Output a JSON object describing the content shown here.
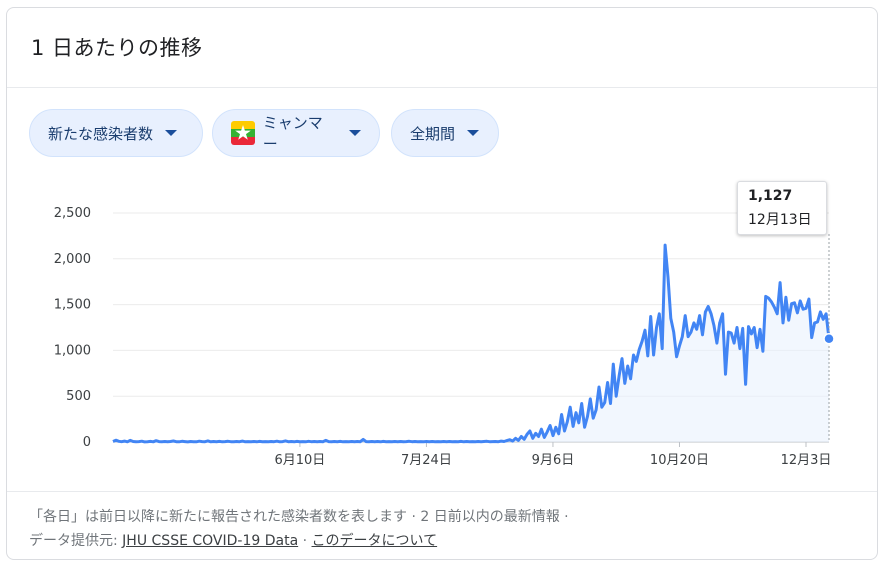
{
  "header": {
    "title": "1 日あたりの推移"
  },
  "filters": {
    "metric": "新たな感染者数",
    "country": "ミャンマー",
    "period": "全期間"
  },
  "tooltip": {
    "value": "1,127",
    "date": "12月13日"
  },
  "footer": {
    "line1": "「各日」は前日以降に新たに報告された感染者数を表します · 2 日前以内の最新情報 ·",
    "source_prefix": "データ提供元: ",
    "source_link": "JHU CSSE COVID-19 Data",
    "separator": " · ",
    "about_link": "このデータについて"
  },
  "colors": {
    "line": "#4285f4",
    "area": "#e8f0fe",
    "pill_bg": "#e8f0fe",
    "flag_top": "#fecb00",
    "flag_mid": "#34b233",
    "flag_bottom": "#ea2839"
  },
  "chart_data": {
    "type": "area",
    "title": "",
    "xlabel": "",
    "ylabel": "",
    "ylim": [
      0,
      2500
    ],
    "yticks": [
      "0",
      "500",
      "1,000",
      "1,500",
      "2,000",
      "2,500"
    ],
    "xticks": [
      {
        "label": "6月10日",
        "day": 88
      },
      {
        "label": "7月24日",
        "day": 132
      },
      {
        "label": "9月6日",
        "day": 176
      },
      {
        "label": "10月20日",
        "day": 220
      },
      {
        "label": "12月3日",
        "day": 264
      }
    ],
    "grid": true,
    "series": [
      {
        "name": "",
        "points": [
          [
            23,
            5
          ],
          [
            24,
            20
          ],
          [
            25,
            8
          ],
          [
            26,
            3
          ],
          [
            27,
            10
          ],
          [
            28,
            2
          ],
          [
            29,
            18
          ],
          [
            30,
            6
          ],
          [
            31,
            2
          ],
          [
            32,
            4
          ],
          [
            33,
            9
          ],
          [
            34,
            1
          ],
          [
            35,
            3
          ],
          [
            36,
            7
          ],
          [
            37,
            2
          ],
          [
            38,
            14
          ],
          [
            39,
            4
          ],
          [
            40,
            3
          ],
          [
            41,
            6
          ],
          [
            42,
            2
          ],
          [
            43,
            5
          ],
          [
            44,
            11
          ],
          [
            45,
            3
          ],
          [
            46,
            2
          ],
          [
            47,
            8
          ],
          [
            48,
            4
          ],
          [
            49,
            1
          ],
          [
            50,
            6
          ],
          [
            51,
            3
          ],
          [
            52,
            2
          ],
          [
            53,
            9
          ],
          [
            54,
            4
          ],
          [
            55,
            3
          ],
          [
            56,
            12
          ],
          [
            57,
            2
          ],
          [
            58,
            5
          ],
          [
            59,
            3
          ],
          [
            60,
            7
          ],
          [
            61,
            2
          ],
          [
            62,
            4
          ],
          [
            63,
            8
          ],
          [
            64,
            3
          ],
          [
            65,
            2
          ],
          [
            66,
            6
          ],
          [
            67,
            3
          ],
          [
            68,
            10
          ],
          [
            69,
            2
          ],
          [
            70,
            4
          ],
          [
            71,
            3
          ],
          [
            72,
            5
          ],
          [
            73,
            2
          ],
          [
            74,
            7
          ],
          [
            75,
            3
          ],
          [
            76,
            4
          ],
          [
            77,
            2
          ],
          [
            78,
            6
          ],
          [
            79,
            3
          ],
          [
            80,
            9
          ],
          [
            81,
            2
          ],
          [
            82,
            4
          ],
          [
            83,
            12
          ],
          [
            84,
            3
          ],
          [
            85,
            5
          ],
          [
            86,
            2
          ],
          [
            87,
            7
          ],
          [
            88,
            3
          ],
          [
            89,
            4
          ],
          [
            90,
            2
          ],
          [
            91,
            8
          ],
          [
            92,
            3
          ],
          [
            93,
            5
          ],
          [
            94,
            2
          ],
          [
            95,
            6
          ],
          [
            96,
            3
          ],
          [
            97,
            18
          ],
          [
            98,
            4
          ],
          [
            99,
            2
          ],
          [
            100,
            5
          ],
          [
            101,
            3
          ],
          [
            102,
            7
          ],
          [
            103,
            2
          ],
          [
            104,
            4
          ],
          [
            105,
            3
          ],
          [
            106,
            6
          ],
          [
            107,
            2
          ],
          [
            108,
            5
          ],
          [
            109,
            3
          ],
          [
            110,
            28
          ],
          [
            111,
            4
          ],
          [
            112,
            2
          ],
          [
            113,
            6
          ],
          [
            114,
            3
          ],
          [
            115,
            5
          ],
          [
            116,
            2
          ],
          [
            117,
            7
          ],
          [
            118,
            3
          ],
          [
            119,
            4
          ],
          [
            120,
            2
          ],
          [
            121,
            5
          ],
          [
            122,
            3
          ],
          [
            123,
            6
          ],
          [
            124,
            2
          ],
          [
            125,
            4
          ],
          [
            126,
            8
          ],
          [
            127,
            3
          ],
          [
            128,
            5
          ],
          [
            129,
            2
          ],
          [
            130,
            4
          ],
          [
            131,
            3
          ],
          [
            132,
            6
          ],
          [
            133,
            2
          ],
          [
            134,
            5
          ],
          [
            135,
            3
          ],
          [
            136,
            4
          ],
          [
            137,
            2
          ],
          [
            138,
            6
          ],
          [
            139,
            3
          ],
          [
            140,
            5
          ],
          [
            141,
            2
          ],
          [
            142,
            4
          ],
          [
            143,
            3
          ],
          [
            144,
            7
          ],
          [
            145,
            2
          ],
          [
            146,
            5
          ],
          [
            147,
            3
          ],
          [
            148,
            4
          ],
          [
            149,
            2
          ],
          [
            150,
            6
          ],
          [
            151,
            3
          ],
          [
            152,
            5
          ],
          [
            153,
            8
          ],
          [
            154,
            3
          ],
          [
            155,
            4
          ],
          [
            156,
            6
          ],
          [
            157,
            3
          ],
          [
            158,
            10
          ],
          [
            159,
            5
          ],
          [
            160,
            15
          ],
          [
            161,
            25
          ],
          [
            162,
            10
          ],
          [
            163,
            40
          ],
          [
            164,
            18
          ],
          [
            165,
            60
          ],
          [
            166,
            30
          ],
          [
            167,
            85
          ],
          [
            168,
            120
          ],
          [
            169,
            40
          ],
          [
            170,
            95
          ],
          [
            171,
            60
          ],
          [
            172,
            140
          ],
          [
            173,
            50
          ],
          [
            174,
            110
          ],
          [
            175,
            180
          ],
          [
            176,
            70
          ],
          [
            177,
            160
          ],
          [
            178,
            90
          ],
          [
            179,
            300
          ],
          [
            180,
            120
          ],
          [
            181,
            220
          ],
          [
            182,
            380
          ],
          [
            183,
            170
          ],
          [
            184,
            320
          ],
          [
            185,
            210
          ],
          [
            186,
            420
          ],
          [
            187,
            160
          ],
          [
            188,
            280
          ],
          [
            189,
            470
          ],
          [
            190,
            260
          ],
          [
            191,
            350
          ],
          [
            192,
            600
          ],
          [
            193,
            380
          ],
          [
            194,
            430
          ],
          [
            195,
            650
          ],
          [
            196,
            420
          ],
          [
            197,
            850
          ],
          [
            198,
            500
          ],
          [
            199,
            720
          ],
          [
            200,
            910
          ],
          [
            201,
            640
          ],
          [
            202,
            830
          ],
          [
            203,
            690
          ],
          [
            204,
            950
          ],
          [
            205,
            880
          ],
          [
            206,
            1010
          ],
          [
            207,
            1100
          ],
          [
            208,
            1220
          ],
          [
            209,
            940
          ],
          [
            210,
            1370
          ],
          [
            211,
            950
          ],
          [
            212,
            1250
          ],
          [
            213,
            1400
          ],
          [
            214,
            1020
          ],
          [
            215,
            2150
          ],
          [
            216,
            1800
          ],
          [
            217,
            1350
          ],
          [
            218,
            1200
          ],
          [
            219,
            930
          ],
          [
            220,
            1050
          ],
          [
            221,
            1150
          ],
          [
            222,
            1380
          ],
          [
            223,
            1150
          ],
          [
            224,
            1200
          ],
          [
            225,
            1300
          ],
          [
            226,
            1230
          ],
          [
            227,
            1380
          ],
          [
            228,
            1170
          ],
          [
            229,
            1420
          ],
          [
            230,
            1480
          ],
          [
            231,
            1400
          ],
          [
            232,
            1270
          ],
          [
            233,
            1080
          ],
          [
            234,
            1300
          ],
          [
            235,
            1400
          ],
          [
            236,
            740
          ],
          [
            237,
            1200
          ],
          [
            238,
            1190
          ],
          [
            239,
            1080
          ],
          [
            240,
            1250
          ],
          [
            241,
            1020
          ],
          [
            242,
            1240
          ],
          [
            243,
            630
          ],
          [
            244,
            1260
          ],
          [
            245,
            1180
          ],
          [
            246,
            1250
          ],
          [
            247,
            1030
          ],
          [
            248,
            1230
          ],
          [
            249,
            990
          ],
          [
            250,
            1590
          ],
          [
            251,
            1570
          ],
          [
            252,
            1530
          ],
          [
            253,
            1470
          ],
          [
            254,
            1400
          ],
          [
            255,
            1740
          ],
          [
            256,
            1300
          ],
          [
            257,
            1580
          ],
          [
            258,
            1330
          ],
          [
            259,
            1510
          ],
          [
            260,
            1520
          ],
          [
            261,
            1410
          ],
          [
            262,
            1540
          ],
          [
            263,
            1450
          ],
          [
            264,
            1460
          ],
          [
            265,
            1560
          ],
          [
            266,
            1140
          ],
          [
            267,
            1300
          ],
          [
            268,
            1310
          ],
          [
            269,
            1420
          ],
          [
            270,
            1340
          ],
          [
            271,
            1400
          ],
          [
            272,
            1127
          ]
        ]
      }
    ]
  }
}
